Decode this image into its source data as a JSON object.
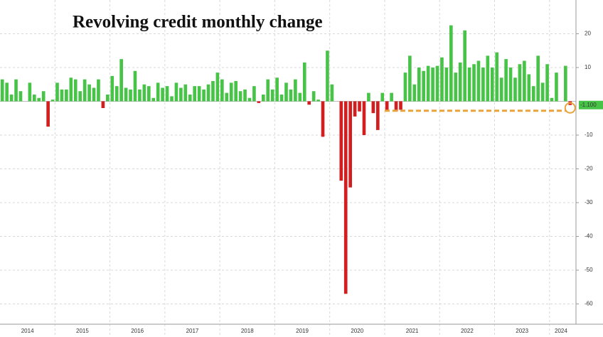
{
  "chart_data": {
    "type": "bar",
    "title": "Revolving credit monthly change",
    "categories": [
      "2014",
      null,
      null,
      null,
      null,
      null,
      null,
      null,
      null,
      null,
      null,
      null,
      "2015",
      null,
      null,
      null,
      null,
      null,
      null,
      null,
      null,
      null,
      null,
      null,
      "2016",
      null,
      null,
      null,
      null,
      null,
      null,
      null,
      null,
      null,
      null,
      null,
      "2017",
      null,
      null,
      null,
      null,
      null,
      null,
      null,
      null,
      null,
      null,
      null,
      "2018",
      null,
      null,
      null,
      null,
      null,
      null,
      null,
      null,
      null,
      null,
      null,
      "2019",
      null,
      null,
      null,
      null,
      null,
      null,
      null,
      null,
      null,
      null,
      null,
      "2020",
      null,
      null,
      null,
      null,
      null,
      null,
      null,
      null,
      null,
      null,
      null,
      "2021",
      null,
      null,
      null,
      null,
      null,
      null,
      null,
      null,
      null,
      null,
      null,
      "2022",
      null,
      null,
      null,
      null,
      null,
      null,
      null,
      null,
      null,
      null,
      null,
      "2023",
      null,
      null,
      null,
      null,
      null,
      null,
      null,
      null,
      null,
      null,
      null,
      "2024",
      null,
      null,
      null,
      null
    ],
    "values": [
      6.5,
      5.5,
      2,
      6.5,
      3,
      0,
      5.5,
      2,
      1,
      3,
      -7.5,
      0.5,
      5.5,
      3.5,
      3.5,
      7,
      6.5,
      3,
      6.5,
      5,
      4,
      6.5,
      -2,
      2,
      7.5,
      4.5,
      12.5,
      4,
      3.5,
      9,
      3.5,
      5,
      4.5,
      1,
      5.5,
      4,
      4.5,
      1.5,
      5.5,
      4,
      5,
      2,
      4.5,
      4.5,
      3.5,
      5,
      6,
      8.5,
      6.5,
      2.5,
      5.5,
      6,
      3,
      3.5,
      1,
      4.5,
      -0.5,
      2,
      6.5,
      3.5,
      7,
      2,
      5.5,
      3.5,
      6.5,
      2.5,
      11.5,
      -1,
      3,
      0.5,
      -10.5,
      15,
      5,
      0,
      -23.5,
      -57,
      -25.5,
      -4.5,
      -3,
      -10,
      2.5,
      -3.5,
      -8.5,
      2.5,
      -3,
      2.5,
      -3,
      -2.5,
      8.5,
      13.5,
      5,
      10,
      9,
      10.5,
      10,
      10.5,
      13,
      10,
      22.5,
      8.5,
      11.5,
      21,
      10,
      11,
      12,
      10,
      13.5,
      10,
      14.5,
      7,
      12.5,
      10,
      7,
      11,
      12,
      8,
      4.5,
      13.5,
      5.5,
      11,
      1,
      8.5,
      0,
      10.5,
      -1.1
    ],
    "colors": {
      "positive": "#47c447",
      "negative": "#d21e1e"
    },
    "last_label": {
      "value": -1.1,
      "label": "-1.100"
    },
    "ylim": [
      -66,
      30
    ],
    "yticks": [
      20,
      10,
      -10,
      -20,
      -30,
      -40,
      -50,
      -60
    ],
    "grid": true
  }
}
